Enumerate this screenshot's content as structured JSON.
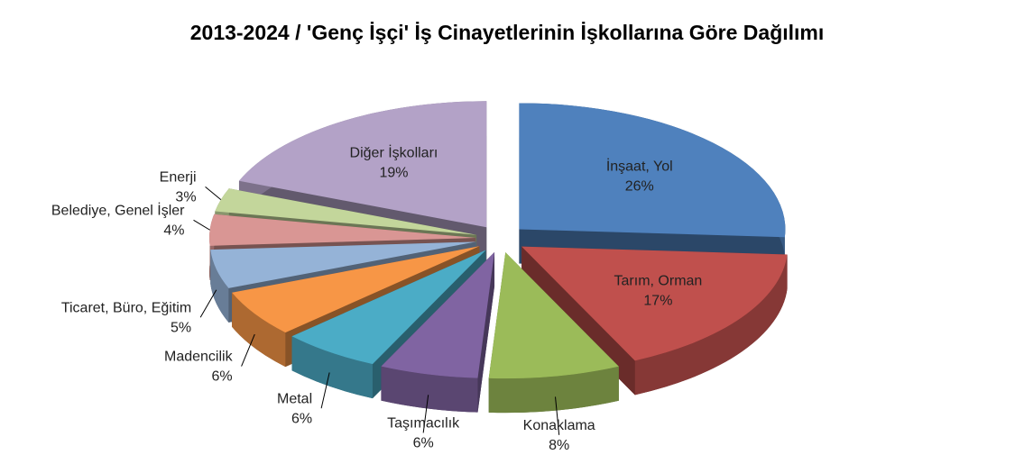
{
  "chart_data": {
    "type": "pie",
    "title": "2013-2024 / 'Genç İşçi' İş Cinayetlerinin İşkollarına Göre Dağılımı",
    "categories": [
      "İnşaat, Yol",
      "Tarım, Orman",
      "Konaklama",
      "Taşımacılık",
      "Metal",
      "Madencilik",
      "Ticaret, Büro, Eğitim",
      "Belediye, Genel İşler",
      "Enerji",
      "Diğer İşkolları"
    ],
    "values": [
      26,
      17,
      8,
      6,
      6,
      6,
      5,
      4,
      3,
      19
    ],
    "value_labels": [
      "26%",
      "17%",
      "8%",
      "6%",
      "6%",
      "6%",
      "5%",
      "4%",
      "3%",
      "19%"
    ],
    "colors": [
      "#4f81bd",
      "#c0504d",
      "#9bbb59",
      "#8064a2",
      "#4bacc6",
      "#f79646",
      "#95b3d7",
      "#d99694",
      "#c3d69b",
      "#b3a2c7"
    ]
  }
}
